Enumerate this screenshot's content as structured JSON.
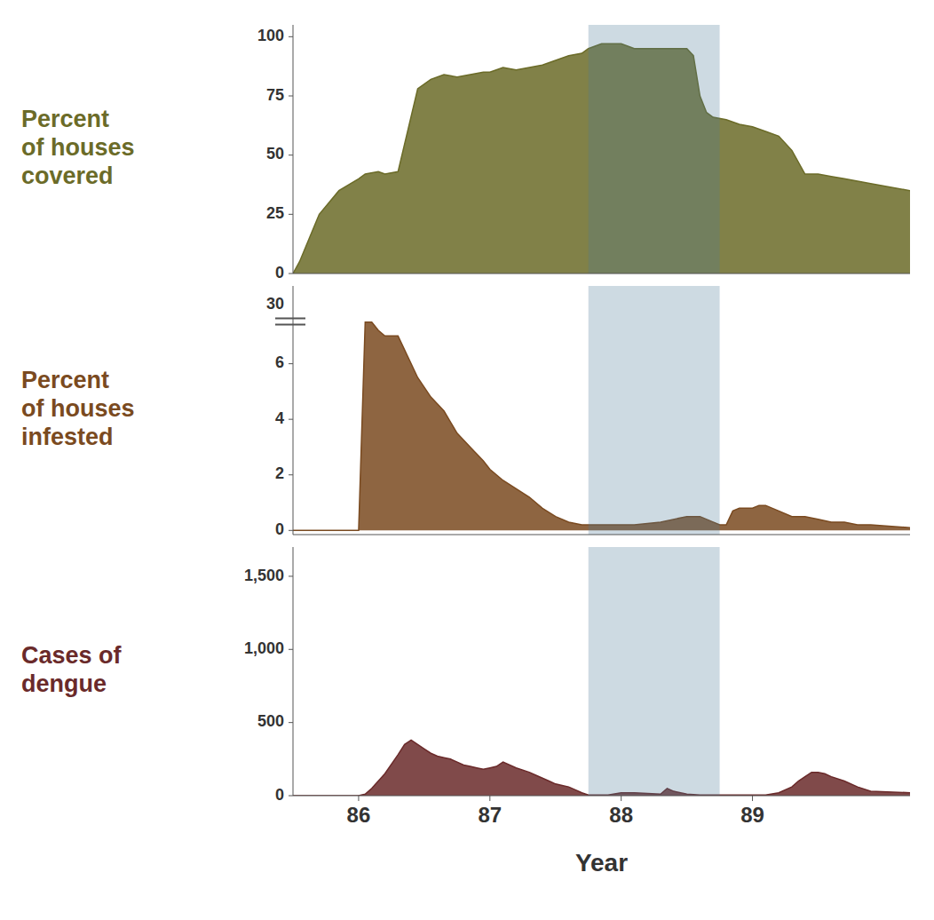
{
  "chart_data": [
    {
      "type": "area",
      "title": "Percent\nof houses\ncovered",
      "color": "#6b6b28",
      "x": [
        85.5,
        85.55,
        85.7,
        85.85,
        86.0,
        86.05,
        86.15,
        86.2,
        86.3,
        86.45,
        86.55,
        86.65,
        86.75,
        86.85,
        86.95,
        87.0,
        87.1,
        87.2,
        87.3,
        87.4,
        87.5,
        87.6,
        87.7,
        87.75,
        87.85,
        88.0,
        88.05,
        88.1,
        88.15,
        88.5,
        88.55,
        88.6,
        88.65,
        88.7,
        88.8,
        88.9,
        89.0,
        89.1,
        89.2,
        89.3,
        89.4,
        89.5,
        89.6,
        89.7,
        89.8,
        89.9,
        90.2
      ],
      "values": [
        0,
        5,
        25,
        35,
        40,
        42,
        43,
        42,
        43,
        78,
        82,
        84,
        83,
        84,
        85,
        85,
        87,
        86,
        87,
        88,
        90,
        92,
        93,
        95,
        97,
        97,
        96,
        95,
        95,
        95,
        92,
        75,
        68,
        66,
        65,
        63,
        62,
        60,
        58,
        52,
        42,
        42,
        41,
        40,
        39,
        38,
        35
      ],
      "highlight_x": [
        87.75,
        88.75
      ],
      "xlim": [
        85.5,
        90.2
      ],
      "ylim": [
        0,
        105
      ],
      "yticks": [
        0,
        25,
        50,
        75,
        100
      ],
      "grid": false,
      "tick_labels": "y"
    },
    {
      "type": "area",
      "title": "Percent\nof houses\ninfested",
      "color": "#7a4a20",
      "x": [
        85.5,
        85.55,
        86.0,
        86.05,
        86.1,
        86.15,
        86.2,
        86.3,
        86.45,
        86.55,
        86.65,
        86.75,
        86.85,
        86.95,
        87.0,
        87.1,
        87.2,
        87.3,
        87.4,
        87.5,
        87.6,
        87.7,
        87.75,
        87.9,
        88.0,
        88.1,
        88.3,
        88.5,
        88.6,
        88.7,
        88.75,
        88.8,
        88.85,
        88.9,
        89.0,
        89.05,
        89.1,
        89.2,
        89.3,
        89.4,
        89.5,
        89.6,
        89.7,
        89.8,
        89.9,
        90.2
      ],
      "values": [
        0,
        0,
        0,
        7.5,
        7.5,
        7.2,
        7.0,
        7.0,
        5.5,
        4.8,
        4.3,
        3.5,
        3.0,
        2.5,
        2.2,
        1.8,
        1.5,
        1.2,
        0.8,
        0.5,
        0.3,
        0.2,
        0.2,
        0.2,
        0.2,
        0.2,
        0.3,
        0.5,
        0.5,
        0.3,
        0.2,
        0.2,
        0.7,
        0.8,
        0.8,
        0.9,
        0.9,
        0.7,
        0.5,
        0.5,
        0.4,
        0.3,
        0.3,
        0.2,
        0.2,
        0.1
      ],
      "highlight_x": [
        87.75,
        88.75
      ],
      "annotations": [
        "30"
      ],
      "xlim": [
        85.5,
        90.2
      ],
      "ylim": [
        -0.15,
        8.8
      ],
      "yticks": [
        0,
        2,
        4,
        6
      ],
      "grid": false,
      "tick_labels": "y"
    },
    {
      "type": "area",
      "title": "Cases of\ndengue",
      "color": "#6a2a2a",
      "x_label": "Year",
      "x": [
        85.5,
        85.55,
        85.9,
        86.0,
        86.05,
        86.1,
        86.2,
        86.3,
        86.35,
        86.4,
        86.45,
        86.5,
        86.55,
        86.6,
        86.65,
        86.7,
        86.75,
        86.8,
        86.85,
        86.9,
        86.95,
        87.0,
        87.05,
        87.1,
        87.2,
        87.3,
        87.35,
        87.4,
        87.45,
        87.5,
        87.55,
        87.6,
        87.65,
        87.7,
        87.75,
        87.9,
        88.0,
        88.1,
        88.2,
        88.3,
        88.35,
        88.4,
        88.5,
        88.6,
        88.7,
        88.75,
        88.8,
        88.9,
        89.0,
        89.1,
        89.2,
        89.3,
        89.35,
        89.4,
        89.45,
        89.5,
        89.55,
        89.6,
        89.7,
        89.8,
        89.9,
        90.2
      ],
      "values": [
        0,
        0,
        0,
        0,
        10,
        50,
        150,
        280,
        350,
        380,
        350,
        320,
        290,
        270,
        260,
        250,
        230,
        210,
        200,
        190,
        180,
        190,
        200,
        230,
        190,
        160,
        140,
        120,
        100,
        80,
        70,
        60,
        40,
        20,
        5,
        5,
        20,
        20,
        15,
        10,
        50,
        30,
        10,
        5,
        5,
        5,
        5,
        5,
        5,
        5,
        20,
        60,
        100,
        130,
        160,
        160,
        150,
        130,
        100,
        60,
        30,
        20
      ],
      "highlight_x": [
        87.75,
        88.75
      ],
      "xlim": [
        85.5,
        90.2
      ],
      "ylim": [
        0,
        1700
      ],
      "yticks": [
        0,
        500,
        {
          "value": 1000,
          "label": "1,000"
        },
        {
          "value": 1500,
          "label": "1,500"
        }
      ],
      "xticks": [
        86,
        87,
        88,
        89
      ],
      "grid": false
    }
  ]
}
